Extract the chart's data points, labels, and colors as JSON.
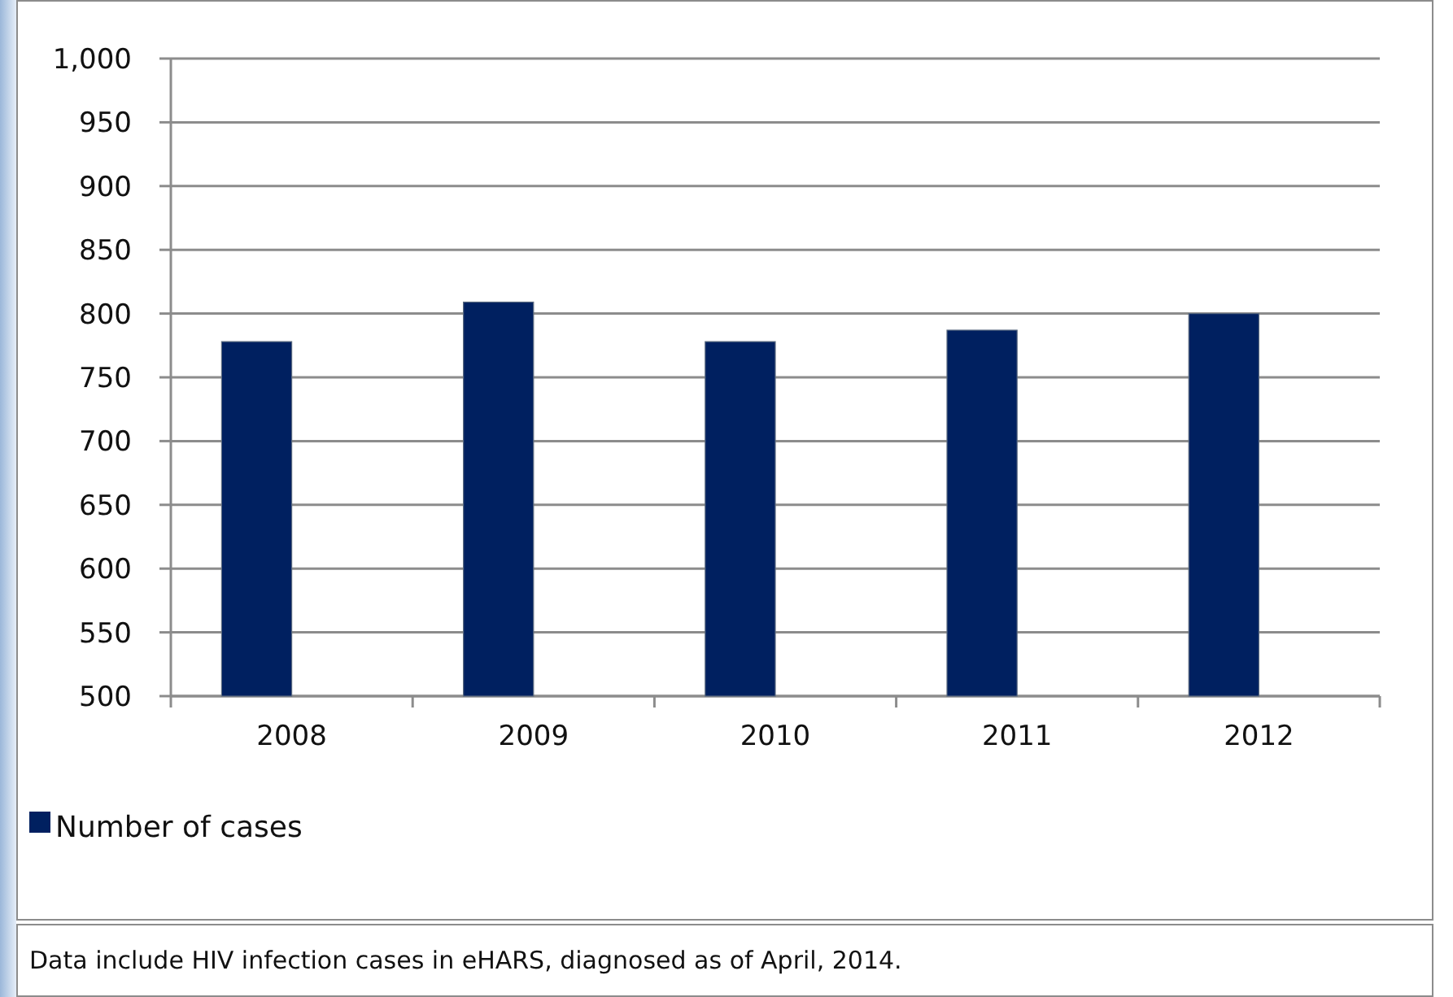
{
  "chart_data": {
    "type": "bar",
    "categories": [
      "2008",
      "2009",
      "2010",
      "2011",
      "2012"
    ],
    "series": [
      {
        "name": "Number of cases",
        "color": "#002060",
        "values": [
          778,
          809,
          778,
          787,
          800
        ]
      }
    ],
    "ylim": [
      500,
      1000
    ],
    "yticks": [
      500,
      550,
      600,
      650,
      700,
      750,
      800,
      850,
      900,
      950,
      {
        "value": 1000,
        "label": "1,000"
      }
    ],
    "grid": "y",
    "legend": "bottom",
    "annotations": [
      "Data include HIV infection cases in eHARS, diagnosed as of April, 2014."
    ]
  }
}
